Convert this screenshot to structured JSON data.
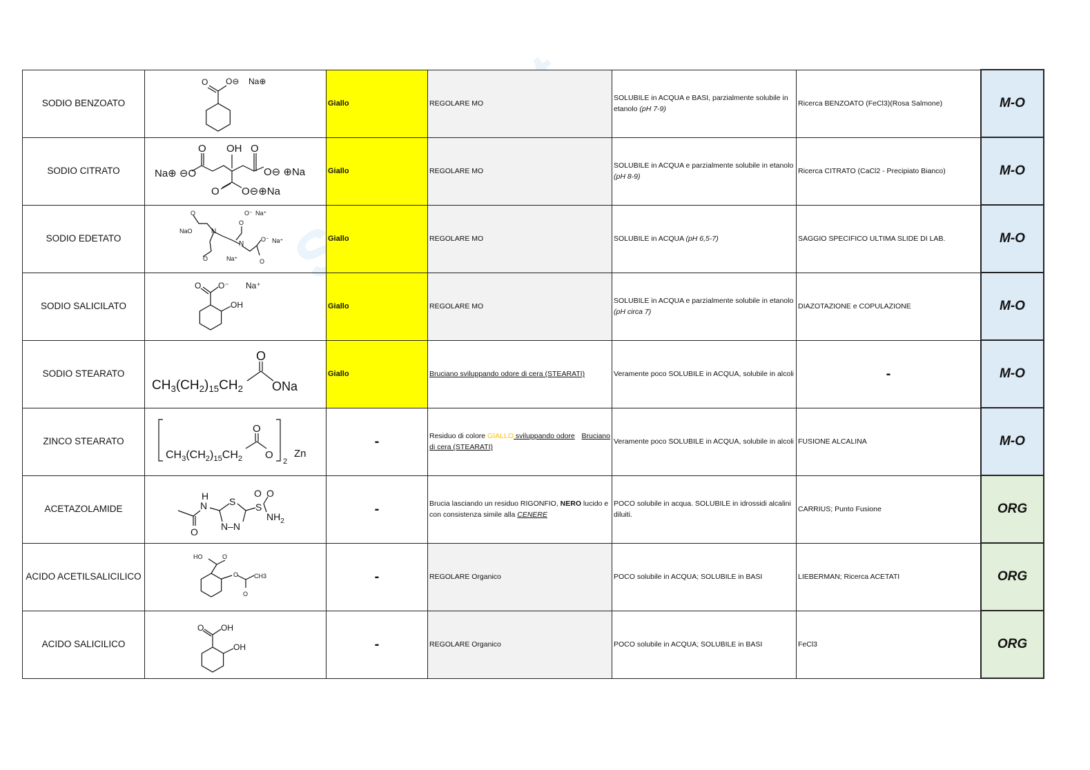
{
  "watermark": {
    "logo": "Skuola.net",
    "tagline": "il paradiso dello studente"
  },
  "colors": {
    "yellow": "#FFFF00",
    "grey_cell": "#F2F2F2",
    "mo_class": "#DDEBF7",
    "org_class": "#E2EFDA",
    "giallo_text": "#FFC000"
  },
  "rows": [
    {
      "name": "SODIO BENZOATO",
      "structure": [
        "O",
        "O⊖",
        "Na⊕"
      ],
      "color": "Giallo",
      "burn": [
        {
          "t": "REGOLARE MO"
        }
      ],
      "solubility": [
        {
          "t": "SOLUBILE in ACQUA e BASI, parzialmente solubile in etanolo "
        },
        {
          "t": "(pH 7-9)",
          "s": "i"
        }
      ],
      "assay": "Ricerca BENZOATO (FeCl3)(Rosa Salmone)",
      "class": "M-O"
    },
    {
      "name": "SODIO CITRATO",
      "structure": [
        "Na⊕ ⊖O",
        "O",
        "OH",
        "O",
        "O⊖ ⊕Na",
        "O",
        "O⊖⊕Na"
      ],
      "color": "Giallo",
      "burn": [
        {
          "t": "REGOLARE MO"
        }
      ],
      "solubility": [
        {
          "t": "SOLUBILE in ACQUA e parzialmente solubile in etanolo "
        },
        {
          "t": "(pH 8-9)",
          "s": "i"
        }
      ],
      "assay": "Ricerca CITRATO (CaCl2 - Precipiato Bianco)",
      "class": "M-O"
    },
    {
      "name": "SODIO EDETATO",
      "structure": [
        "O",
        "NaO",
        "N",
        "O",
        "O⁻",
        "Na⁺",
        "N",
        "O⁻",
        "Na⁺",
        "O",
        "Na⁺",
        "O"
      ],
      "color": "Giallo",
      "burn": [
        {
          "t": "REGOLARE MO"
        }
      ],
      "solubility": [
        {
          "t": "SOLUBILE in ACQUA  "
        },
        {
          "t": "(pH 6,5-7)",
          "s": "i"
        }
      ],
      "assay": "SAGGIO SPECIFICO ULTIMA SLIDE DI LAB.",
      "class": "M-O"
    },
    {
      "name": "SODIO SALICILATO",
      "structure": [
        "O",
        "O⁻",
        "Na⁺",
        "OH"
      ],
      "color": "Giallo",
      "burn": [
        {
          "t": "REGOLARE MO"
        }
      ],
      "solubility": [
        {
          "t": "SOLUBILE in ACQUA e parzialmente solubile in etanolo "
        },
        {
          "t": "(pH circa 7)",
          "s": "i"
        }
      ],
      "assay": "DIAZOTAZIONE e COPULAZIONE",
      "class": "M-O"
    },
    {
      "name": "SODIO STEARATO",
      "structure": [
        "CH",
        "3",
        "(CH",
        "2",
        ")",
        "15",
        "CH",
        "2",
        "O",
        "ONa"
      ],
      "color": "Giallo",
      "burn": [
        {
          "t": "Bruciano sviluppando odore di cera (STEARATI)",
          "s": "u"
        }
      ],
      "solubility": [
        {
          "t": "Veramente poco SOLUBILE in ACQUA, solubile in alcoli"
        }
      ],
      "assay": "-",
      "class": "M-O"
    },
    {
      "name": "ZINCO STEARATO",
      "structure": [
        "CH",
        "3",
        "(CH",
        "2",
        ")",
        "15",
        "CH",
        "2",
        "O",
        "O",
        "2",
        "Zn"
      ],
      "color": "-",
      "burn": [
        {
          "t": "Residuo di colore "
        },
        {
          "t": "GIALLO",
          "s": "orange"
        },
        {
          "t": "Bruciano",
          "s": "u right"
        },
        {
          "t": " sviluppando odore di cera (STEARATI)",
          "s": "u"
        }
      ],
      "solubility": [
        {
          "t": "Veramente poco SOLUBILE in ACQUA, solubile in alcoli"
        }
      ],
      "assay": "FUSIONE ALCALINA",
      "class": "M-O"
    },
    {
      "name": "ACETAZOLAMIDE",
      "structure": [
        "H",
        "N",
        "O",
        "S",
        "N–N",
        "S",
        "O",
        "O",
        "NH",
        "2"
      ],
      "color": "-",
      "burn": [
        {
          "t": "Brucia lasciando un residuo RIGONFIO, "
        },
        {
          "t": "NERO",
          "s": "b"
        },
        {
          "t": " lucido e con consistenza simile alla "
        },
        {
          "t": "CENERE",
          "s": "i u"
        }
      ],
      "solubility": [
        {
          "t": "POCO solubile in acqua. SOLUBILE in idrossidi alcalini diluiti."
        }
      ],
      "assay": "CARRIUS; Punto Fusione",
      "class": "ORG"
    },
    {
      "name": "ACIDO ACETILSALICILICO",
      "structure": [
        "HO",
        "O",
        "O",
        "CH3",
        "O"
      ],
      "color": "-",
      "burn": [
        {
          "t": "REGOLARE Organico"
        }
      ],
      "solubility": [
        {
          "t": "POCO solubile in ACQUA;  SOLUBILE in BASI"
        }
      ],
      "assay": "LIEBERMAN; Ricerca ACETATI",
      "class": "ORG"
    },
    {
      "name": "ACIDO SALICILICO",
      "structure": [
        "O",
        "OH",
        "OH"
      ],
      "color": "-",
      "burn": [
        {
          "t": "REGOLARE Organico"
        }
      ],
      "solubility": [
        {
          "t": "POCO solubile in ACQUA;  SOLUBILE in BASI"
        }
      ],
      "assay": "FeCl3",
      "class": "ORG"
    }
  ]
}
